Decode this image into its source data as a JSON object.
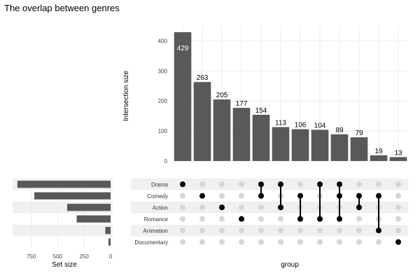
{
  "chart_data": {
    "type": "bar",
    "title": "The overlap between genres",
    "intersection": {
      "ylabel": "Intersection size",
      "xlabel": "group",
      "ylim": [
        0,
        450
      ],
      "yticks": [
        0,
        100,
        200,
        300,
        400
      ],
      "values": [
        429,
        263,
        205,
        177,
        154,
        113,
        106,
        104,
        89,
        79,
        19,
        13
      ],
      "inside_label_index": 0
    },
    "sets": {
      "names": [
        "Drama",
        "Comedy",
        "Action",
        "Romance",
        "Animation",
        "Documentary"
      ],
      "sizes": [
        880,
        720,
        410,
        320,
        50,
        20
      ],
      "xlabel": "Set size",
      "xticks": [
        750,
        500,
        250,
        0
      ],
      "xlim": [
        0,
        925
      ],
      "reversed": true
    },
    "matrix": [
      [
        0
      ],
      [
        1
      ],
      [
        2
      ],
      [
        3
      ],
      [
        0,
        1
      ],
      [
        0,
        2
      ],
      [
        1,
        3
      ],
      [
        0,
        3
      ],
      [
        0,
        1,
        3
      ],
      [
        1,
        2
      ],
      [
        1,
        4
      ],
      [
        5
      ]
    ],
    "colors": {
      "bar": "#595959",
      "dot_active": "#000000",
      "dot_inactive": "#d6d6d6",
      "stripe": "#f0f0f0",
      "grid": "#ebebeb"
    }
  }
}
